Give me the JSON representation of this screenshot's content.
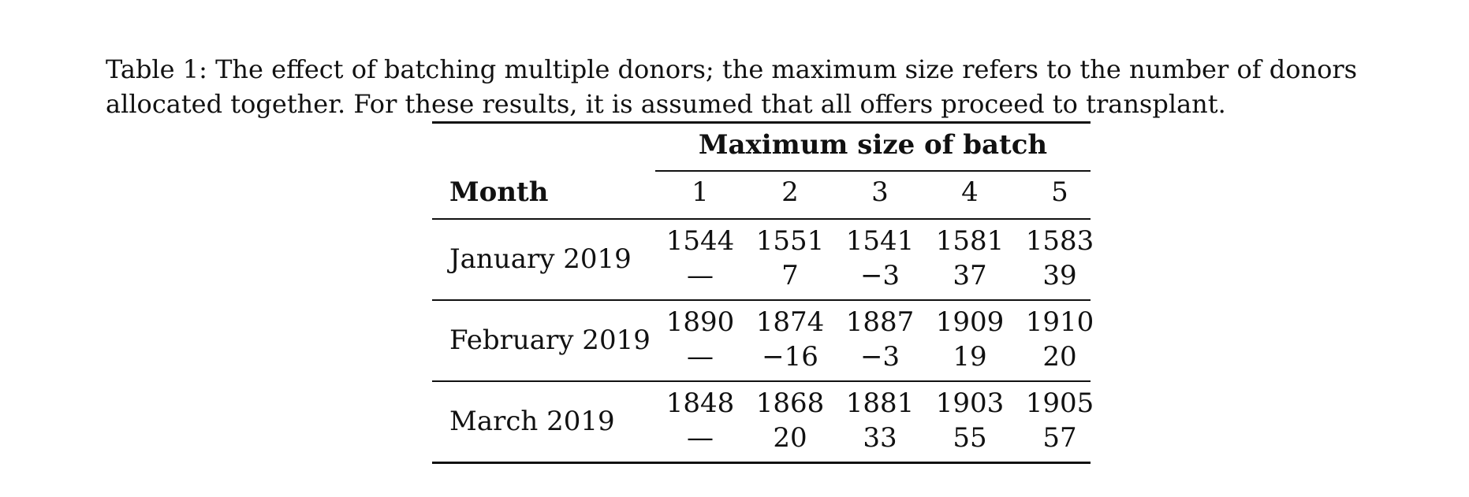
{
  "caption": "Table 1: The effect of batching multiple donors; the maximum size refers to the number of donors allocated together. For these results, it is assumed that all offers proceed to transplant.",
  "table": {
    "group_header": "Maximum size of batch",
    "row_header": "Month",
    "columns": [
      "1",
      "2",
      "3",
      "4",
      "5"
    ],
    "rows": [
      {
        "month": "January 2019",
        "values": [
          "1544",
          "1551",
          "1541",
          "1581",
          "1583"
        ],
        "diffs": [
          "—",
          "7",
          "−3",
          "37",
          "39"
        ]
      },
      {
        "month": "February 2019",
        "values": [
          "1890",
          "1874",
          "1887",
          "1909",
          "1910"
        ],
        "diffs": [
          "—",
          "−16",
          "−3",
          "19",
          "20"
        ]
      },
      {
        "month": "March 2019",
        "values": [
          "1848",
          "1868",
          "1881",
          "1903",
          "1905"
        ],
        "diffs": [
          "—",
          "20",
          "33",
          "55",
          "57"
        ]
      }
    ]
  }
}
